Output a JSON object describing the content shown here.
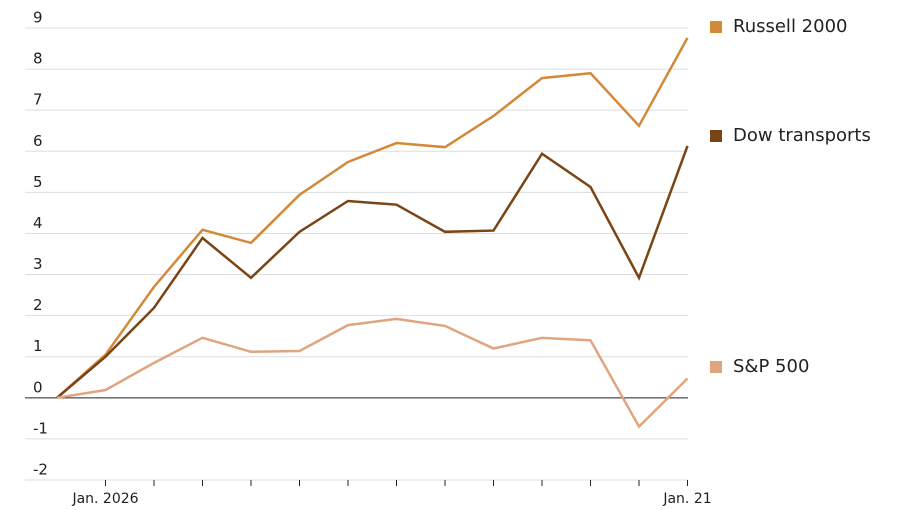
{
  "chart_data": {
    "type": "line",
    "categories": [
      null,
      "Jan. 2026",
      null,
      null,
      null,
      null,
      null,
      null,
      null,
      null,
      null,
      null,
      null,
      "Jan. 21"
    ],
    "series": [
      {
        "name": "Russell 2000",
        "color": "#d4893a",
        "values": [
          0,
          1.05,
          2.7,
          4.09,
          3.77,
          4.94,
          5.74,
          6.2,
          6.1,
          6.86,
          7.78,
          7.9,
          6.62,
          8.76
        ]
      },
      {
        "name": "Dow transports",
        "color": "#7a4516",
        "values": [
          0,
          1.0,
          2.19,
          3.89,
          2.92,
          4.04,
          4.79,
          4.7,
          4.04,
          4.07,
          5.94,
          5.13,
          2.92,
          6.13
        ]
      },
      {
        "name": "S&P 500",
        "color": "#e0a57f",
        "values": [
          0,
          0.19,
          0.85,
          1.46,
          1.12,
          1.14,
          1.77,
          1.92,
          1.75,
          1.2,
          1.46,
          1.4,
          -0.7,
          0.47
        ]
      }
    ],
    "ylim": [
      -2,
      9
    ],
    "yticks": [
      -2,
      -1,
      0,
      1,
      2,
      3,
      4,
      5,
      6,
      7,
      8,
      9
    ],
    "grid": true
  }
}
